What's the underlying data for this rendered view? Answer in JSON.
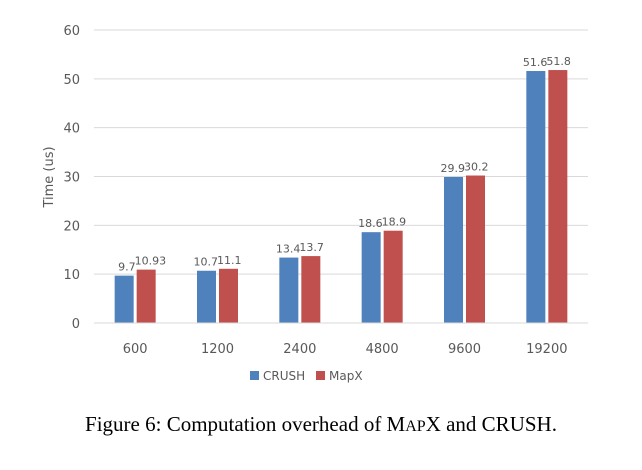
{
  "chart_data": {
    "type": "bar",
    "categories": [
      "600",
      "1200",
      "2400",
      "4800",
      "9600",
      "19200"
    ],
    "series": [
      {
        "name": "CRUSH",
        "color": "#4f81bd",
        "values": [
          9.7,
          10.7,
          13.4,
          18.6,
          29.9,
          51.6
        ],
        "labels": [
          "9.7",
          "10.7",
          "13.4",
          "18.6",
          "29.9",
          "51.6"
        ]
      },
      {
        "name": "MapX",
        "color": "#c0504d",
        "values": [
          10.93,
          11.1,
          13.7,
          18.9,
          30.2,
          51.8
        ],
        "labels": [
          "10.93",
          "11.1",
          "13.7",
          "18.9",
          "30.2",
          "51.8"
        ]
      }
    ],
    "title": "",
    "xlabel": "",
    "ylabel": "Time (us)",
    "ylim": [
      0,
      60
    ],
    "yticks": [
      0,
      10,
      20,
      30,
      40,
      50,
      60
    ],
    "grid": true,
    "legend_position": "bottom"
  },
  "caption": {
    "prefix": "Figure 6: Computation overhead of M",
    "smallcaps": "AP",
    "suffix": "X and CRUSH."
  }
}
